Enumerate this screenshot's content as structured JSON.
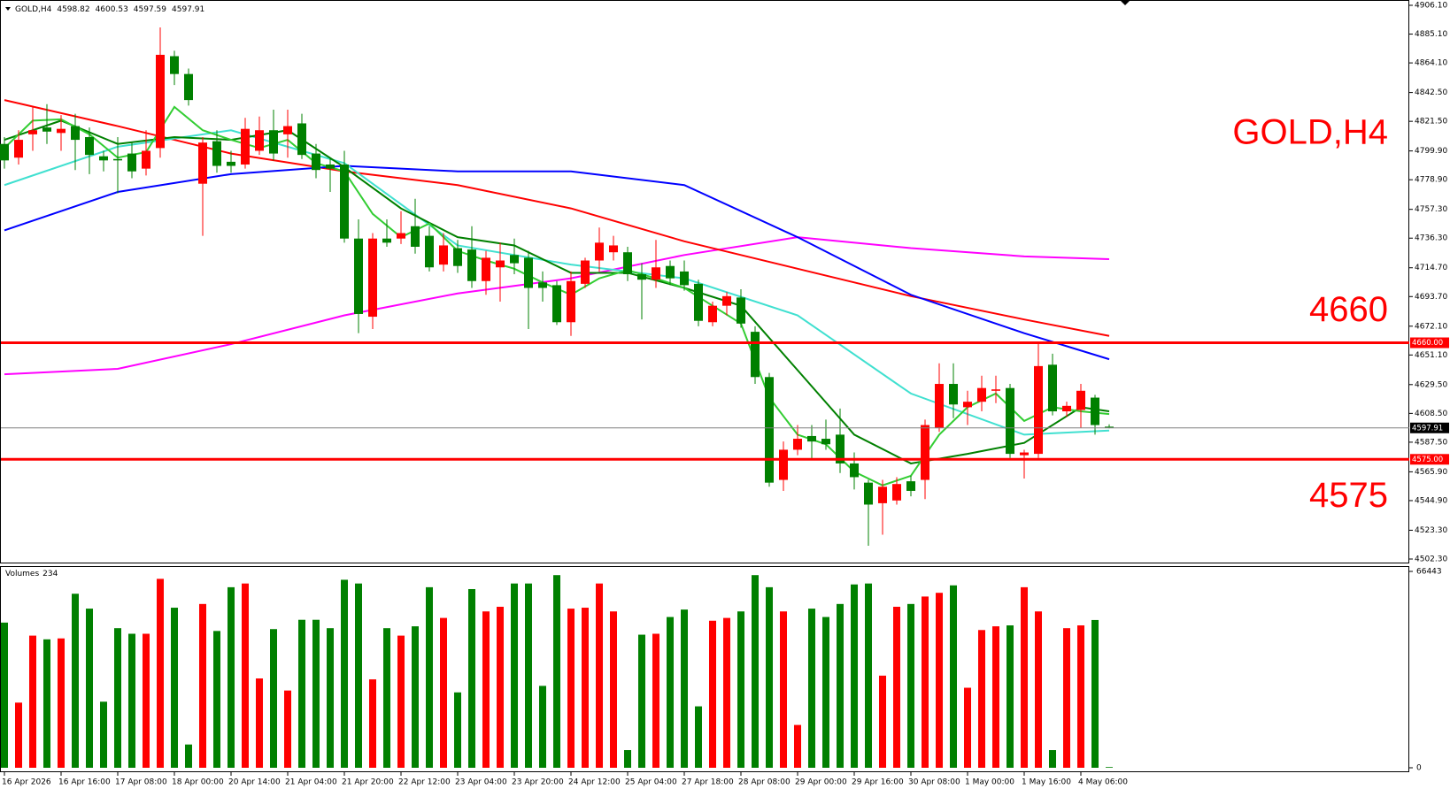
{
  "chart_data": {
    "type": "candlestick",
    "title": "GOLD,H4",
    "quote": [
      4598.82,
      4600.53,
      4597.59,
      4597.91
    ],
    "up_color": "#ff0000",
    "down_color": "#008000",
    "categories": [
      "16 Apr 2026",
      null,
      null,
      null,
      "16 Apr 16:00",
      null,
      null,
      null,
      "17 Apr 08:00",
      null,
      null,
      null,
      "18 Apr 00:00",
      null,
      null,
      null,
      "20 Apr 14:00",
      null,
      null,
      null,
      "21 Apr 04:00",
      null,
      null,
      null,
      "21 Apr 20:00",
      null,
      null,
      null,
      "22 Apr 12:00",
      null,
      null,
      null,
      "23 Apr 04:00",
      null,
      null,
      null,
      "23 Apr 20:00",
      null,
      null,
      null,
      "24 Apr 12:00",
      null,
      null,
      null,
      "25 Apr 04:00",
      null,
      null,
      null,
      "27 Apr 18:00",
      null,
      null,
      null,
      "28 Apr 08:00",
      null,
      null,
      null,
      "29 Apr 00:00",
      null,
      null,
      null,
      "29 Apr 16:00",
      null,
      null,
      null,
      "30 Apr 08:00",
      null,
      null,
      null,
      "1 May 00:00",
      null,
      null,
      null,
      "1 May 16:00",
      null,
      null,
      null,
      "4 May 06:00",
      null,
      null
    ],
    "open": [
      4805,
      4795,
      4812,
      4817,
      4813,
      4818,
      4810,
      4796,
      4794,
      4798,
      4787,
      4802,
      4869,
      4856,
      4776,
      4807,
      4792,
      4790,
      4800,
      4815,
      4812,
      4820,
      4798,
      4790,
      4790,
      4736,
      4679,
      4736,
      4736,
      4745,
      4738,
      4717,
      4729,
      4728,
      4705,
      4715,
      4724,
      4722,
      4704,
      4702,
      4675,
      4703,
      4720,
      4726,
      4726,
      4710,
      4706,
      4716,
      4712,
      4703,
      4675,
      4687,
      4693,
      4668,
      4635,
      4560,
      4582,
      4592,
      4590,
      4593,
      4572,
      4558,
      4543,
      4545,
      4559,
      4560,
      4598,
      4630,
      4613,
      4617,
      4625,
      4627,
      4578,
      4579,
      4644,
      4610,
      4611,
      4620,
      4598.82
    ],
    "high": [
      4810,
      4815,
      4832,
      4834,
      4826,
      4827,
      4817,
      4800,
      4810,
      4806,
      4815,
      4890,
      4873,
      4860,
      4810,
      4815,
      4800,
      4824,
      4825,
      4830,
      4830,
      4827,
      4805,
      4795,
      4800,
      4750,
      4740,
      4750,
      4756,
      4765,
      4745,
      4740,
      4735,
      4745,
      4727,
      4733,
      4736,
      4727,
      4712,
      4705,
      4712,
      4722,
      4744,
      4738,
      4730,
      4718,
      4735,
      4720,
      4720,
      4706,
      4690,
      4697,
      4699,
      4672,
      4638,
      4588,
      4600,
      4600,
      4604,
      4612,
      4580,
      4560,
      4560,
      4562,
      4563,
      4604,
      4645,
      4645,
      4625,
      4636,
      4636,
      4630,
      4582,
      4660,
      4652,
      4617,
      4630,
      4622,
      4600.53
    ],
    "low": [
      4787,
      4790,
      4800,
      4805,
      4800,
      4786,
      4783,
      4785,
      4769,
      4780,
      4782,
      4795,
      4848,
      4833,
      4738,
      4784,
      4784,
      4787,
      4797,
      4793,
      4795,
      4794,
      4780,
      4770,
      4733,
      4667,
      4670,
      4730,
      4732,
      4725,
      4712,
      4712,
      4711,
      4700,
      4695,
      4690,
      4710,
      4670,
      4690,
      4673,
      4665,
      4700,
      4712,
      4720,
      4705,
      4677,
      4700,
      4702,
      4698,
      4672,
      4672,
      4680,
      4671,
      4630,
      4555,
      4552,
      4578,
      4575,
      4582,
      4565,
      4553,
      4512,
      4520,
      4542,
      4548,
      4546,
      4595,
      4605,
      4600,
      4610,
      4616,
      4576,
      4561,
      4576,
      4607,
      4606,
      4598,
      4593,
      4597.59
    ],
    "close": [
      4793,
      4808,
      4815,
      4814,
      4816,
      4808,
      4797,
      4793,
      4793,
      4785,
      4800,
      4870,
      4856,
      4837,
      4806,
      4789,
      4789,
      4816,
      4815,
      4798,
      4818,
      4797,
      4786,
      4787,
      4736,
      4681,
      4736,
      4733,
      4740,
      4730,
      4715,
      4731,
      4716,
      4705,
      4722,
      4720,
      4718,
      4700,
      4700,
      4675,
      4705,
      4720,
      4733,
      4731,
      4710,
      4706,
      4715,
      4707,
      4702,
      4676,
      4687,
      4694,
      4674,
      4635,
      4558,
      4582,
      4590,
      4588,
      4586,
      4572,
      4562,
      4542,
      4555,
      4557,
      4552,
      4600,
      4630,
      4615,
      4617,
      4627,
      4626,
      4579,
      4580,
      4643,
      4610,
      4614,
      4625,
      4600,
      4597.91
    ],
    "ylim": [
      4502.3,
      4906.1
    ],
    "yticks": [
      {
        "value": 4906.1,
        "label": "4906.10"
      },
      {
        "value": 4885.1,
        "label": "4885.10"
      },
      {
        "value": 4864.1,
        "label": "4864.10"
      },
      {
        "value": 4842.5,
        "label": "4842.50"
      },
      {
        "value": 4821.5,
        "label": "4821.50"
      },
      {
        "value": 4799.9,
        "label": "4799.90"
      },
      {
        "value": 4778.9,
        "label": "4778.90"
      },
      {
        "value": 4757.3,
        "label": "4757.30"
      },
      {
        "value": 4736.3,
        "label": "4736.30"
      },
      {
        "value": 4714.7,
        "label": "4714.70"
      },
      {
        "value": 4693.7,
        "label": "4693.70"
      },
      {
        "value": 4672.1,
        "label": "4672.10"
      },
      {
        "value": 4651.1,
        "label": "4651.10"
      },
      {
        "value": 4629.5,
        "label": "4629.50"
      },
      {
        "value": 4608.5,
        "label": "4608.50"
      },
      {
        "value": 4587.5,
        "label": "4587.50"
      },
      {
        "value": 4565.9,
        "label": "4565.90"
      },
      {
        "value": 4544.9,
        "label": "4544.90"
      },
      {
        "value": 4523.3,
        "label": "4523.30"
      },
      {
        "value": 4502.3,
        "label": "4502.30"
      }
    ],
    "levels": [
      {
        "value": 4660,
        "label": "4660",
        "tag": "4660.00",
        "color": "#ff0000"
      },
      {
        "value": 4575,
        "label": "4575",
        "tag": "4575.00",
        "color": "#ff0000"
      }
    ],
    "last_price": 4597.91,
    "lines": [
      {
        "color": "#ff00ff",
        "x": [
          0,
          8,
          16,
          24,
          32,
          40,
          48,
          56,
          64,
          72,
          78
        ],
        "values": [
          4637,
          4641,
          4659,
          4680,
          4696,
          4707,
          4724,
          4737,
          4729,
          4723,
          4721
        ]
      },
      {
        "color": "#ff0000",
        "x": [
          0,
          8,
          16,
          24,
          32,
          40,
          48,
          56,
          64,
          72,
          78
        ],
        "values": [
          4837,
          4818,
          4798,
          4785,
          4775,
          4758,
          4734,
          4714,
          4694,
          4677,
          4665
        ]
      },
      {
        "color": "#0000ff",
        "x": [
          0,
          8,
          16,
          24,
          32,
          40,
          48,
          56,
          64,
          72,
          78
        ],
        "values": [
          4742,
          4770,
          4783,
          4789,
          4785,
          4785,
          4775,
          4737,
          4695,
          4667,
          4648
        ]
      },
      {
        "color": "#40e0d0",
        "x": [
          0,
          8,
          16,
          24,
          32,
          40,
          48,
          56,
          64,
          72,
          78
        ],
        "values": [
          4775,
          4803,
          4815,
          4791,
          4731,
          4717,
          4707,
          4680,
          4623,
          4593,
          4596
        ]
      },
      {
        "color": "#008000",
        "x": [
          0,
          4,
          8,
          12,
          16,
          20,
          24,
          28,
          32,
          36,
          40,
          44,
          48,
          52,
          56,
          60,
          64,
          68,
          72,
          76,
          78
        ],
        "values": [
          4808,
          4822,
          4805,
          4810,
          4808,
          4815,
          4788,
          4758,
          4737,
          4731,
          4711,
          4711,
          4700,
          4687,
          4640,
          4593,
          4572,
          4579,
          4587,
          4613,
          4610
        ]
      },
      {
        "color": "#32cd32",
        "x": [
          0,
          2,
          4,
          6,
          8,
          10,
          12,
          14,
          16,
          18,
          20,
          22,
          24,
          26,
          28,
          30,
          32,
          34,
          36,
          38,
          40,
          42,
          44,
          46,
          48,
          50,
          52,
          54,
          56,
          58,
          60,
          62,
          64,
          66,
          68,
          70,
          72,
          74,
          76,
          78
        ],
        "values": [
          4802,
          4822,
          4823,
          4812,
          4795,
          4799,
          4832,
          4815,
          4808,
          4802,
          4808,
          4791,
          4785,
          4754,
          4737,
          4747,
          4727,
          4720,
          4714,
          4704,
          4695,
          4707,
          4713,
          4707,
          4700,
          4687,
          4674,
          4620,
          4593,
          4586,
          4566,
          4556,
          4563,
          4593,
          4613,
          4623,
          4603,
          4613,
          4610,
          4608
        ]
      }
    ],
    "volumes": {
      "title": "Volumes",
      "ylim": [
        0,
        66443
      ],
      "yticks": [
        0,
        66443
      ],
      "values": [
        49124,
        22043,
        44716,
        43456,
        43771,
        58886,
        53848,
        22358,
        47235,
        45346,
        45346,
        63925,
        54163,
        7873,
        55422,
        46290,
        61091,
        62350,
        30230,
        46920,
        26137,
        50069,
        50069,
        47235,
        63610,
        62350,
        29916,
        47235,
        44716,
        47865,
        61091,
        50699,
        25507,
        60461,
        52903,
        54478,
        62350,
        62350,
        27711,
        65184,
        53848,
        54163,
        62350,
        52903,
        5983,
        45031,
        45346,
        51014,
        53533,
        20783,
        49754,
        50699,
        52903,
        65184,
        61091,
        52903,
        14485,
        53848,
        51014,
        55422,
        62035,
        62350,
        31175,
        54478,
        55422,
        57942,
        59201,
        61720,
        27081,
        46605,
        47865,
        48180,
        61091,
        52903,
        5983,
        47235,
        48180,
        50000,
        234
      ]
    }
  }
}
